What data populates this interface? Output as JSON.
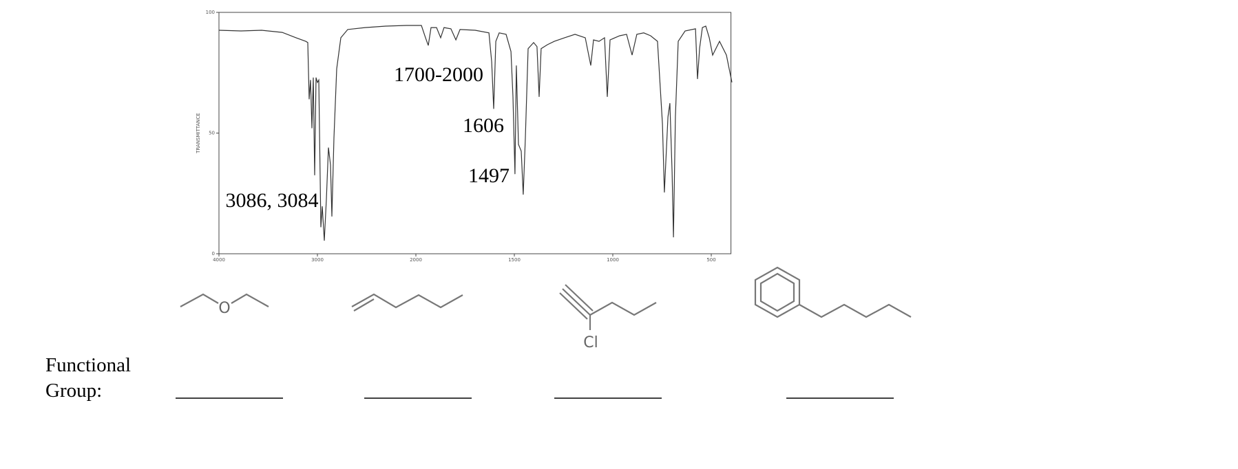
{
  "chart_data": {
    "type": "line",
    "ylabel": "TRANSMITTANCE",
    "x": [
      4000,
      3776,
      3566,
      3357,
      3217,
      3119,
      3098,
      3084,
      3070,
      3056,
      3042,
      3028,
      3014,
      3000,
      2986,
      2965,
      2951,
      2930,
      2909,
      2888,
      2867,
      2853,
      2832,
      2804,
      2762,
      2692,
      2517,
      2308,
      2098,
      1972,
      1951,
      1937,
      1923,
      1895,
      1874,
      1857,
      1822,
      1797,
      1776,
      1699,
      1629,
      1615,
      1605,
      1594,
      1577,
      1542,
      1517,
      1507,
      1497,
      1490,
      1479,
      1465,
      1455,
      1444,
      1430,
      1402,
      1385,
      1374,
      1364,
      1332,
      1297,
      1245,
      1192,
      1140,
      1112,
      1098,
      1070,
      1042,
      1028,
      1014,
      965,
      930,
      902,
      878,
      843,
      808,
      773,
      748,
      738,
      720,
      710,
      699,
      692,
      682,
      668,
      633,
      580,
      570,
      559,
      545,
      528,
      510,
      493,
      458,
      423,
      395
    ],
    "values": [
      92.6,
      92.3,
      92.6,
      91.7,
      89.5,
      88,
      87.5,
      64,
      72,
      52,
      73,
      32.5,
      73,
      71,
      72,
      11,
      19.7,
      5.4,
      22.5,
      44,
      36.8,
      15.4,
      48,
      76.6,
      89.5,
      92.9,
      93.7,
      94.3,
      94.6,
      94.6,
      89.5,
      86.3,
      93.7,
      93.7,
      89.5,
      93.7,
      93.2,
      88.6,
      92.9,
      92.6,
      91.5,
      79.5,
      60,
      88,
      91.5,
      90.9,
      83.8,
      65,
      33,
      78,
      45.3,
      42.5,
      24.5,
      48,
      85,
      87.5,
      85.8,
      65,
      85,
      86.6,
      88,
      89.5,
      90.9,
      89.5,
      78,
      88.6,
      88,
      89.5,
      65,
      88.6,
      90.3,
      90.9,
      82.3,
      90.9,
      91.5,
      90.3,
      88,
      53.8,
      25.4,
      56.7,
      62.4,
      33.9,
      6.8,
      56.7,
      88,
      92.3,
      93.2,
      72.4,
      85.2,
      93.7,
      94.3,
      89.5,
      82.3,
      88,
      82.3,
      71
    ],
    "color": "#333333",
    "xlim": [
      4000,
      400
    ],
    "ylim": [
      0,
      100
    ],
    "xticks": [
      4000,
      3000,
      2000,
      1500,
      1000,
      500
    ],
    "yticks": [
      0,
      50,
      100
    ],
    "annotations": [
      "1700-2000",
      "1606",
      "1497",
      "3086, 3084"
    ]
  },
  "molecule_labels": [
    "O",
    "Cl"
  ],
  "answer_label": [
    "Functional",
    "Group:"
  ]
}
